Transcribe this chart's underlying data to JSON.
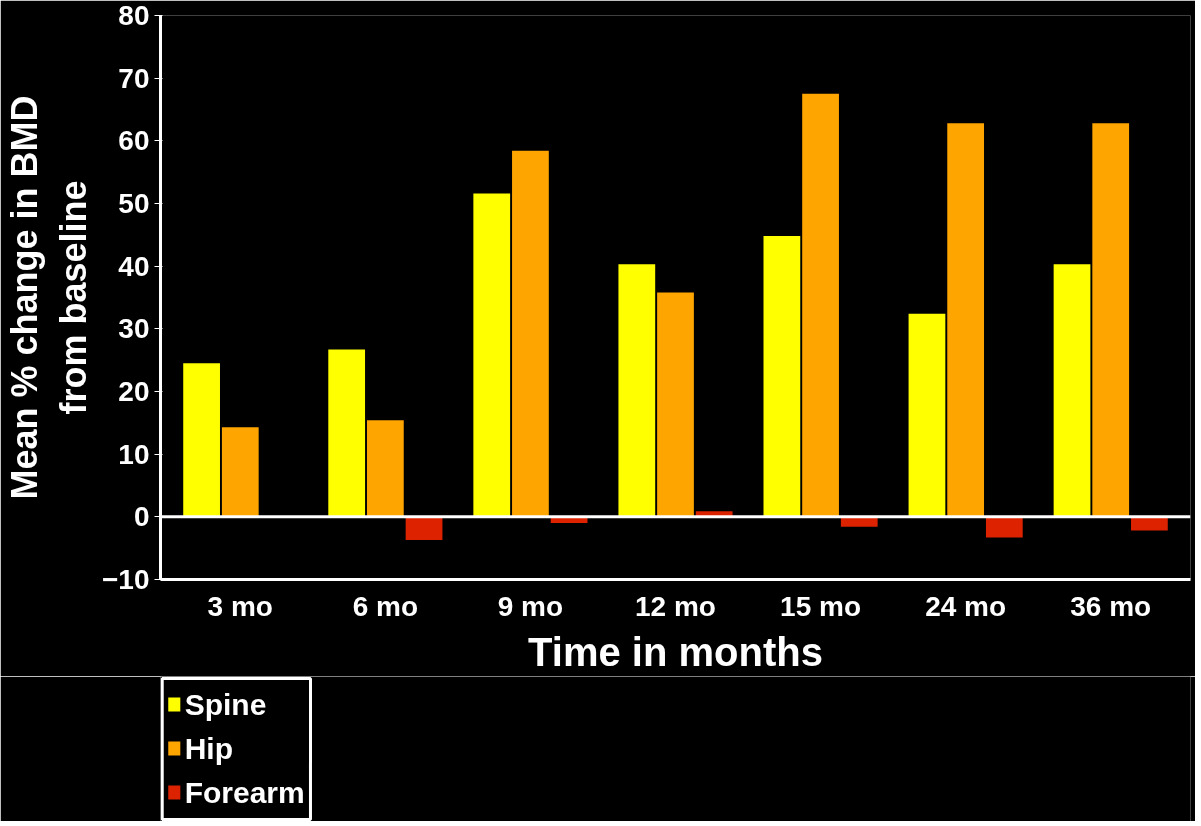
{
  "chart_data": {
    "type": "bar",
    "xlabel": "Time in months",
    "ylabel": "Mean % change in BMD\nfrom baseline",
    "categories": [
      "3 mo",
      "6 mo",
      "9 mo",
      "12 mo",
      "15 mo",
      "24 mo",
      "36 mo"
    ],
    "series": [
      {
        "name": "Spine",
        "color": "#ffff00",
        "values": [
          24.5,
          26.7,
          51.6,
          40.3,
          44.8,
          32.4,
          40.3
        ]
      },
      {
        "name": "Hip",
        "color": "#ffa500",
        "values": [
          14.3,
          15.4,
          58.4,
          35.8,
          67.5,
          62.8,
          62.8
        ]
      },
      {
        "name": "Forearm",
        "color": "#dd2200",
        "values": [
          null,
          -3.7,
          -1,
          0.9,
          -1.6,
          -3.3,
          -2.2
        ]
      }
    ],
    "ylim": [
      -10,
      80
    ],
    "yticks": [
      -10,
      0,
      10,
      20,
      30,
      40,
      50,
      60,
      70,
      80
    ],
    "ref_lines": [
      {
        "axis": "y",
        "value": 0,
        "color": "#ffffff"
      }
    ],
    "grid": false,
    "legend": "bottom left"
  }
}
